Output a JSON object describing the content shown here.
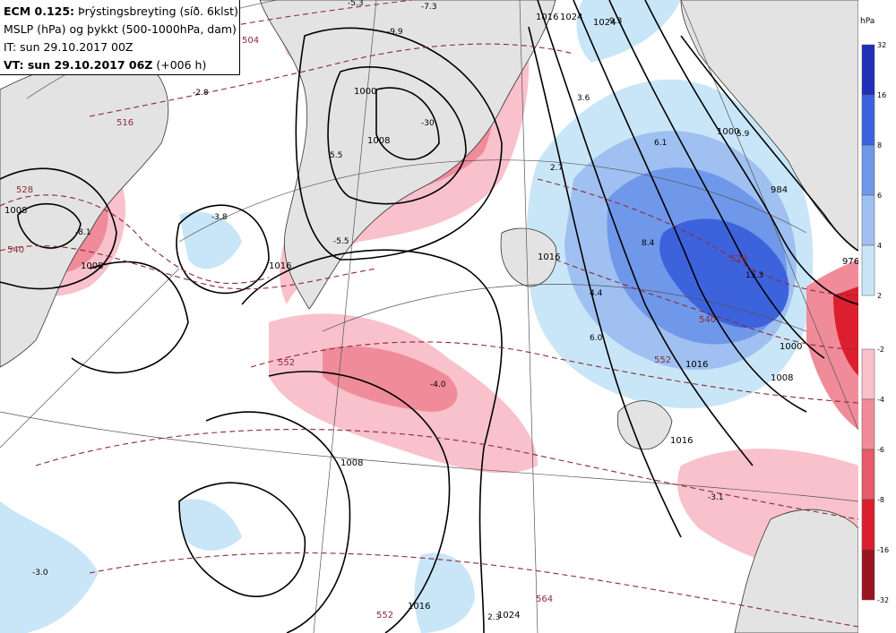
{
  "header": {
    "model": "ECM 0.125:",
    "product": "Þrýstingsbreyting (síð. 6klst)",
    "line2": "MSLP (hPa) og þykkt (500-1000hPa, dam)",
    "it": "IT: sun 29.10.2017 00Z",
    "vt_label": "VT: sun 29.10.2017 06Z",
    "vt_offset": "(+006 h)"
  },
  "legend": {
    "unit": "hPa",
    "positive": [
      {
        "label": "32",
        "color": "#1f2fb8"
      },
      {
        "label": "16",
        "color": "#3d63dc"
      },
      {
        "label": "8",
        "color": "#6f98ea"
      },
      {
        "label": "6",
        "color": "#9fc0f0"
      },
      {
        "label": "4",
        "color": "#c9e6f8"
      },
      {
        "label": "2",
        "color": ""
      }
    ],
    "negative": [
      {
        "label": "-2",
        "color": "#f8c1cb"
      },
      {
        "label": "-4",
        "color": "#f08c9a"
      },
      {
        "label": "-6",
        "color": "#e65a6a"
      },
      {
        "label": "-8",
        "color": "#dc1f2e"
      },
      {
        "label": "-16",
        "color": "#9a1420"
      },
      {
        "label": "-32",
        "color": ""
      }
    ]
  },
  "map": {
    "land_color": "#e3e3e3",
    "isobar_labels": [
      "1008",
      "1008",
      "1016",
      "1000",
      "1008",
      "1016",
      "1024",
      "1008",
      "1016",
      "1024",
      "1016",
      "1000",
      "1008",
      "1016",
      "976",
      "984",
      "1000",
      "1024",
      "1016"
    ],
    "thickness_labels": [
      "504",
      "516",
      "528",
      "540",
      "552",
      "552",
      "564",
      "528",
      "540",
      "552"
    ],
    "pressure_change_labels": [
      "-5.3",
      "-7.3",
      "-9.9",
      "-2.8",
      "-3.8",
      "-5.5",
      "5.5",
      "-30",
      "-8.1",
      "3.6",
      "6.1",
      "5.9",
      "2.7",
      "8.4",
      "15.3",
      "4.4",
      "6.0",
      "-4.0",
      "-3.1",
      "-3.0",
      "2.3",
      "9.3"
    ]
  }
}
